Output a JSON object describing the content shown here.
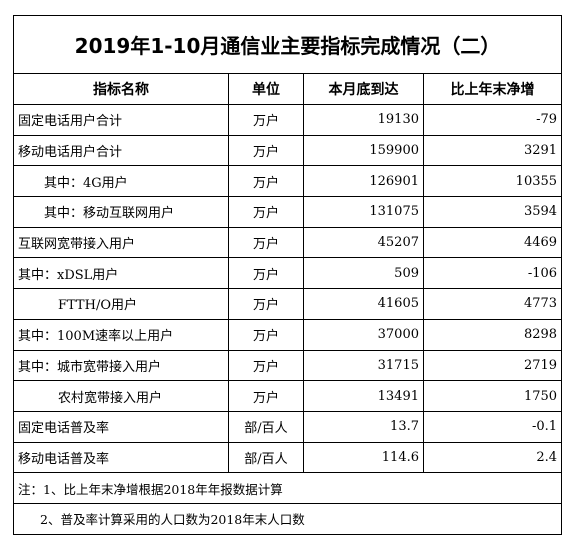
{
  "header": {
    "title": "2019年1-10月通信业主要指标完成情况（二）"
  },
  "table": {
    "columns": [
      "指标名称",
      "单位",
      "本月底到达",
      "比上年末净增"
    ],
    "rows": [
      [
        "固定电话用户合计",
        "万户",
        19130,
        -79
      ],
      [
        "移动电话用户合计",
        "万户",
        159900,
        3291
      ],
      [
        "其中：4G用户",
        "万户",
        126901,
        10355
      ],
      [
        "其中：移动互联网用户",
        "万户",
        131075,
        3594
      ],
      [
        "互联网宽带接入用户",
        "万户",
        45207,
        4469
      ],
      [
        "其中：xDSL用户",
        "万户",
        509,
        -106
      ],
      [
        "FTTH/O用户",
        "万户",
        41605,
        4773
      ],
      [
        "其中：100M速率以上用户",
        "万户",
        37000,
        8298
      ],
      [
        "其中：城市宽带接入用户",
        "万户",
        31715,
        2719
      ],
      [
        "农村宽带接入用户",
        "万户",
        13491,
        1750
      ],
      [
        "固定电话普及率",
        "部/百人",
        13.7,
        -0.1
      ],
      [
        "移动电话普及率",
        "部/百人",
        114.6,
        2.4
      ]
    ]
  },
  "notes": [
    "注：1、比上年末净增根据2018年年报数据计算",
    "2、普及率计算采用的人口数为2018年末人口数"
  ]
}
